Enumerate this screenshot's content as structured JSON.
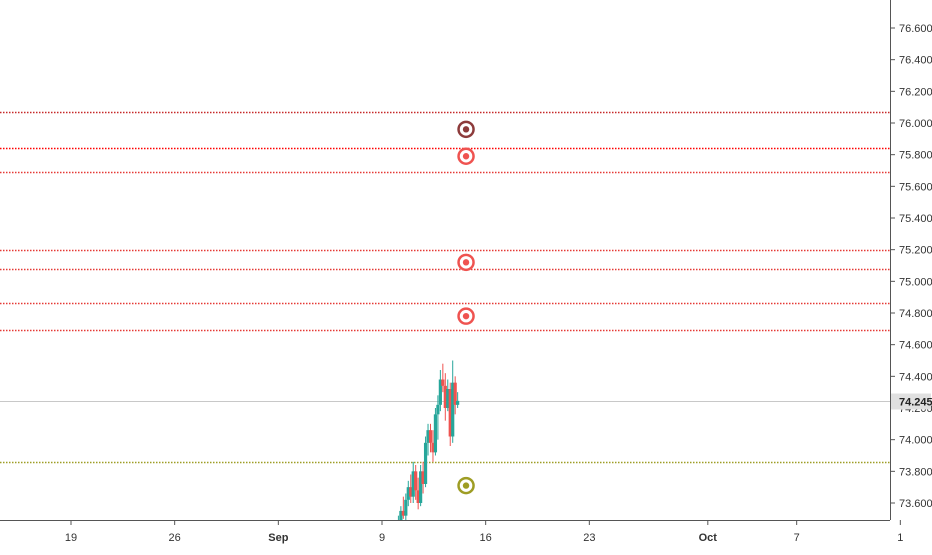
{
  "chart_data": {
    "type": "candlestick",
    "title": "",
    "xlabel": "",
    "ylabel": "",
    "ylim": [
      73.48,
      76.76
    ],
    "y_ticks": [
      "73.600",
      "73.800",
      "74.000",
      "74.200",
      "74.400",
      "74.600",
      "74.800",
      "75.000",
      "75.200",
      "75.400",
      "75.600",
      "75.800",
      "76.000",
      "76.200",
      "76.400",
      "76.600"
    ],
    "x_ticks": [
      "19",
      "26",
      "Sep",
      "9",
      "16",
      "23",
      "Oct",
      "7",
      "1"
    ],
    "last_price": {
      "value": 74.245,
      "label": "74.245"
    },
    "grid": false,
    "horizontal_levels": [
      {
        "value": 76.07,
        "color": "#c62828"
      },
      {
        "value": 75.84,
        "color": "#ff0000"
      },
      {
        "value": 75.69,
        "color": "#e53935"
      },
      {
        "value": 75.2,
        "color": "#e53935"
      },
      {
        "value": 75.08,
        "color": "#e53935"
      },
      {
        "value": 74.86,
        "color": "#e53935"
      },
      {
        "value": 74.69,
        "color": "#e53935"
      },
      {
        "value": 73.86,
        "color": "#9e9d24"
      }
    ],
    "markers": [
      {
        "date": "2019-09-14",
        "value": 75.96,
        "color": "#8d3b3b"
      },
      {
        "date": "2019-09-14",
        "value": 75.79,
        "color": "#ef5350"
      },
      {
        "date": "2019-09-14",
        "value": 75.12,
        "color": "#ef5350"
      },
      {
        "date": "2019-09-14",
        "value": 74.78,
        "color": "#ef5350"
      },
      {
        "date": "2019-09-14",
        "value": 73.71,
        "color": "#9e9d24"
      }
    ],
    "candles": [
      {
        "t": "2019-09-10 00:00",
        "o": 73.44,
        "h": 73.52,
        "l": 73.42,
        "c": 73.49
      },
      {
        "t": "2019-09-10 04:00",
        "o": 73.49,
        "h": 73.58,
        "l": 73.46,
        "c": 73.55
      },
      {
        "t": "2019-09-10 08:00",
        "o": 73.55,
        "h": 73.64,
        "l": 73.5,
        "c": 73.52
      },
      {
        "t": "2019-09-10 12:00",
        "o": 73.52,
        "h": 73.66,
        "l": 73.48,
        "c": 73.62
      },
      {
        "t": "2019-09-10 16:00",
        "o": 73.62,
        "h": 73.74,
        "l": 73.58,
        "c": 73.7
      },
      {
        "t": "2019-09-10 20:00",
        "o": 73.7,
        "h": 73.78,
        "l": 73.6,
        "c": 73.64
      },
      {
        "t": "2019-09-11 00:00",
        "o": 73.64,
        "h": 73.86,
        "l": 73.6,
        "c": 73.8
      },
      {
        "t": "2019-09-11 04:00",
        "o": 73.8,
        "h": 73.84,
        "l": 73.62,
        "c": 73.68
      },
      {
        "t": "2019-09-11 08:00",
        "o": 73.68,
        "h": 73.76,
        "l": 73.56,
        "c": 73.6
      },
      {
        "t": "2019-09-11 12:00",
        "o": 73.6,
        "h": 73.84,
        "l": 73.58,
        "c": 73.8
      },
      {
        "t": "2019-09-11 16:00",
        "o": 73.8,
        "h": 73.86,
        "l": 73.66,
        "c": 73.72
      },
      {
        "t": "2019-09-11 20:00",
        "o": 73.72,
        "h": 74.02,
        "l": 73.7,
        "c": 73.98
      },
      {
        "t": "2019-09-12 00:00",
        "o": 73.98,
        "h": 74.1,
        "l": 73.9,
        "c": 74.06
      },
      {
        "t": "2019-09-12 04:00",
        "o": 74.06,
        "h": 74.1,
        "l": 73.92,
        "c": 73.98
      },
      {
        "t": "2019-09-12 08:00",
        "o": 73.98,
        "h": 74.06,
        "l": 73.86,
        "c": 73.92
      },
      {
        "t": "2019-09-12 12:00",
        "o": 73.92,
        "h": 74.2,
        "l": 73.9,
        "c": 74.16
      },
      {
        "t": "2019-09-12 16:00",
        "o": 74.16,
        "h": 74.28,
        "l": 74.0,
        "c": 74.22
      },
      {
        "t": "2019-09-12 20:00",
        "o": 74.22,
        "h": 74.44,
        "l": 74.18,
        "c": 74.38
      },
      {
        "t": "2019-09-13 00:00",
        "o": 74.38,
        "h": 74.48,
        "l": 74.3,
        "c": 74.34
      },
      {
        "t": "2019-09-13 04:00",
        "o": 74.34,
        "h": 74.42,
        "l": 74.12,
        "c": 74.2
      },
      {
        "t": "2019-09-13 08:00",
        "o": 74.2,
        "h": 74.38,
        "l": 74.18,
        "c": 74.32
      },
      {
        "t": "2019-09-13 12:00",
        "o": 74.32,
        "h": 74.36,
        "l": 73.96,
        "c": 74.02
      },
      {
        "t": "2019-09-13 16:00",
        "o": 74.02,
        "h": 74.5,
        "l": 73.98,
        "c": 74.36
      },
      {
        "t": "2019-09-13 20:00",
        "o": 74.36,
        "h": 74.4,
        "l": 74.16,
        "c": 74.22
      },
      {
        "t": "2019-09-14 00:00",
        "o": 74.22,
        "h": 74.3,
        "l": 74.2,
        "c": 74.245
      }
    ],
    "colors": {
      "up": "#26a69a",
      "down": "#ef5350",
      "last_price_line": "#c8c8c8",
      "axis": "#555555"
    }
  }
}
